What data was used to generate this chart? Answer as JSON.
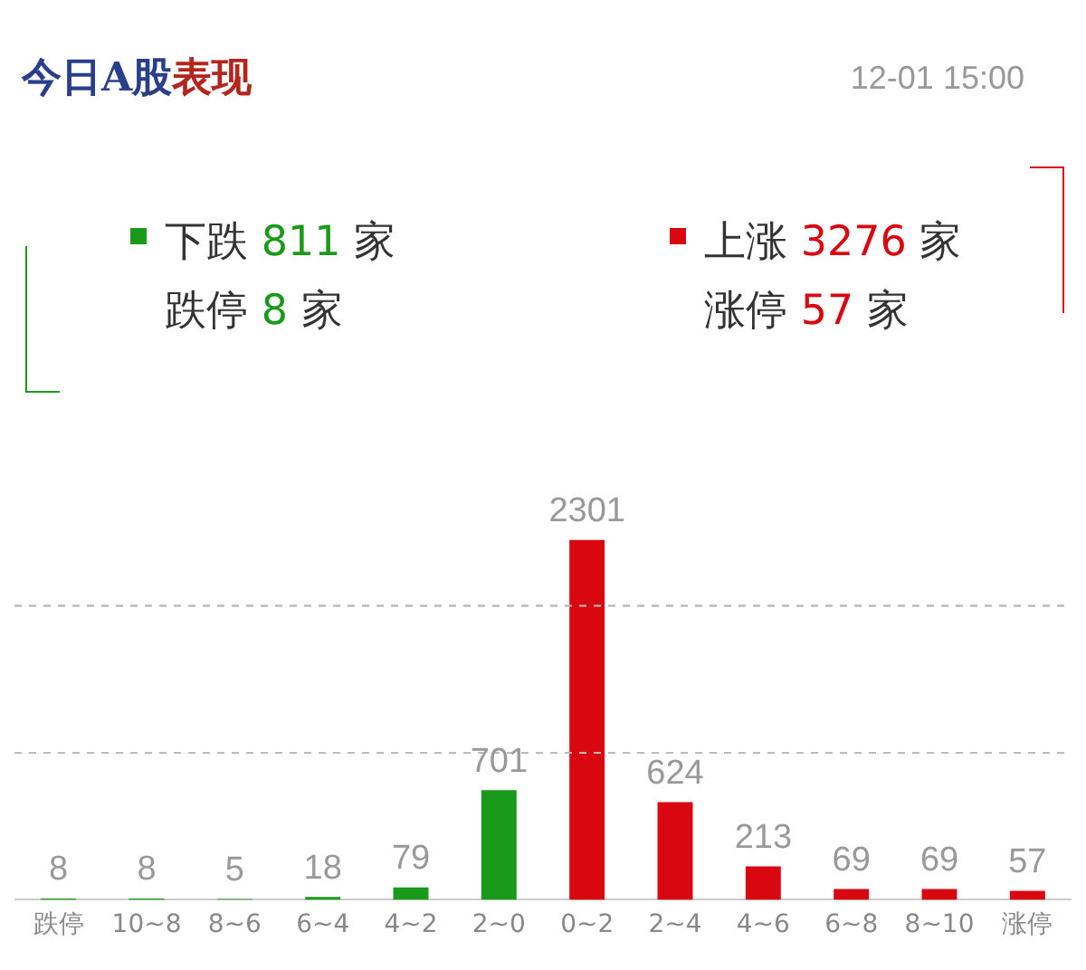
{
  "chart_data": {
    "type": "bar",
    "title": "今日A股表现",
    "annotations": [
      "12-01 15:00",
      "下跌 811 家",
      "跌停 8 家",
      "上涨 3276 家",
      "涨停 57 家"
    ],
    "categories": [
      "跌停",
      "10~8",
      "8~6",
      "6~4",
      "4~2",
      "2~0",
      "0~2",
      "2~4",
      "4~6",
      "6~8",
      "8~10",
      "涨停"
    ],
    "values": [
      8,
      8,
      5,
      18,
      79,
      701,
      2301,
      624,
      213,
      69,
      69,
      57
    ],
    "colors": [
      "#1a9a1a",
      "#1a9a1a",
      "#1a9a1a",
      "#1a9a1a",
      "#1a9a1a",
      "#1a9a1a",
      "#d9070f",
      "#d9070f",
      "#d9070f",
      "#d9070f",
      "#d9070f",
      "#d9070f"
    ],
    "ref_lines": [
      {
        "axis": "y",
        "value": 940,
        "color": "#bbbbbb",
        "line_style": "dashed"
      },
      {
        "axis": "y",
        "value": 1880,
        "color": "#bbbbbb",
        "line_style": "dashed"
      }
    ],
    "tick_labels": "x",
    "data_labels": true
  }
}
